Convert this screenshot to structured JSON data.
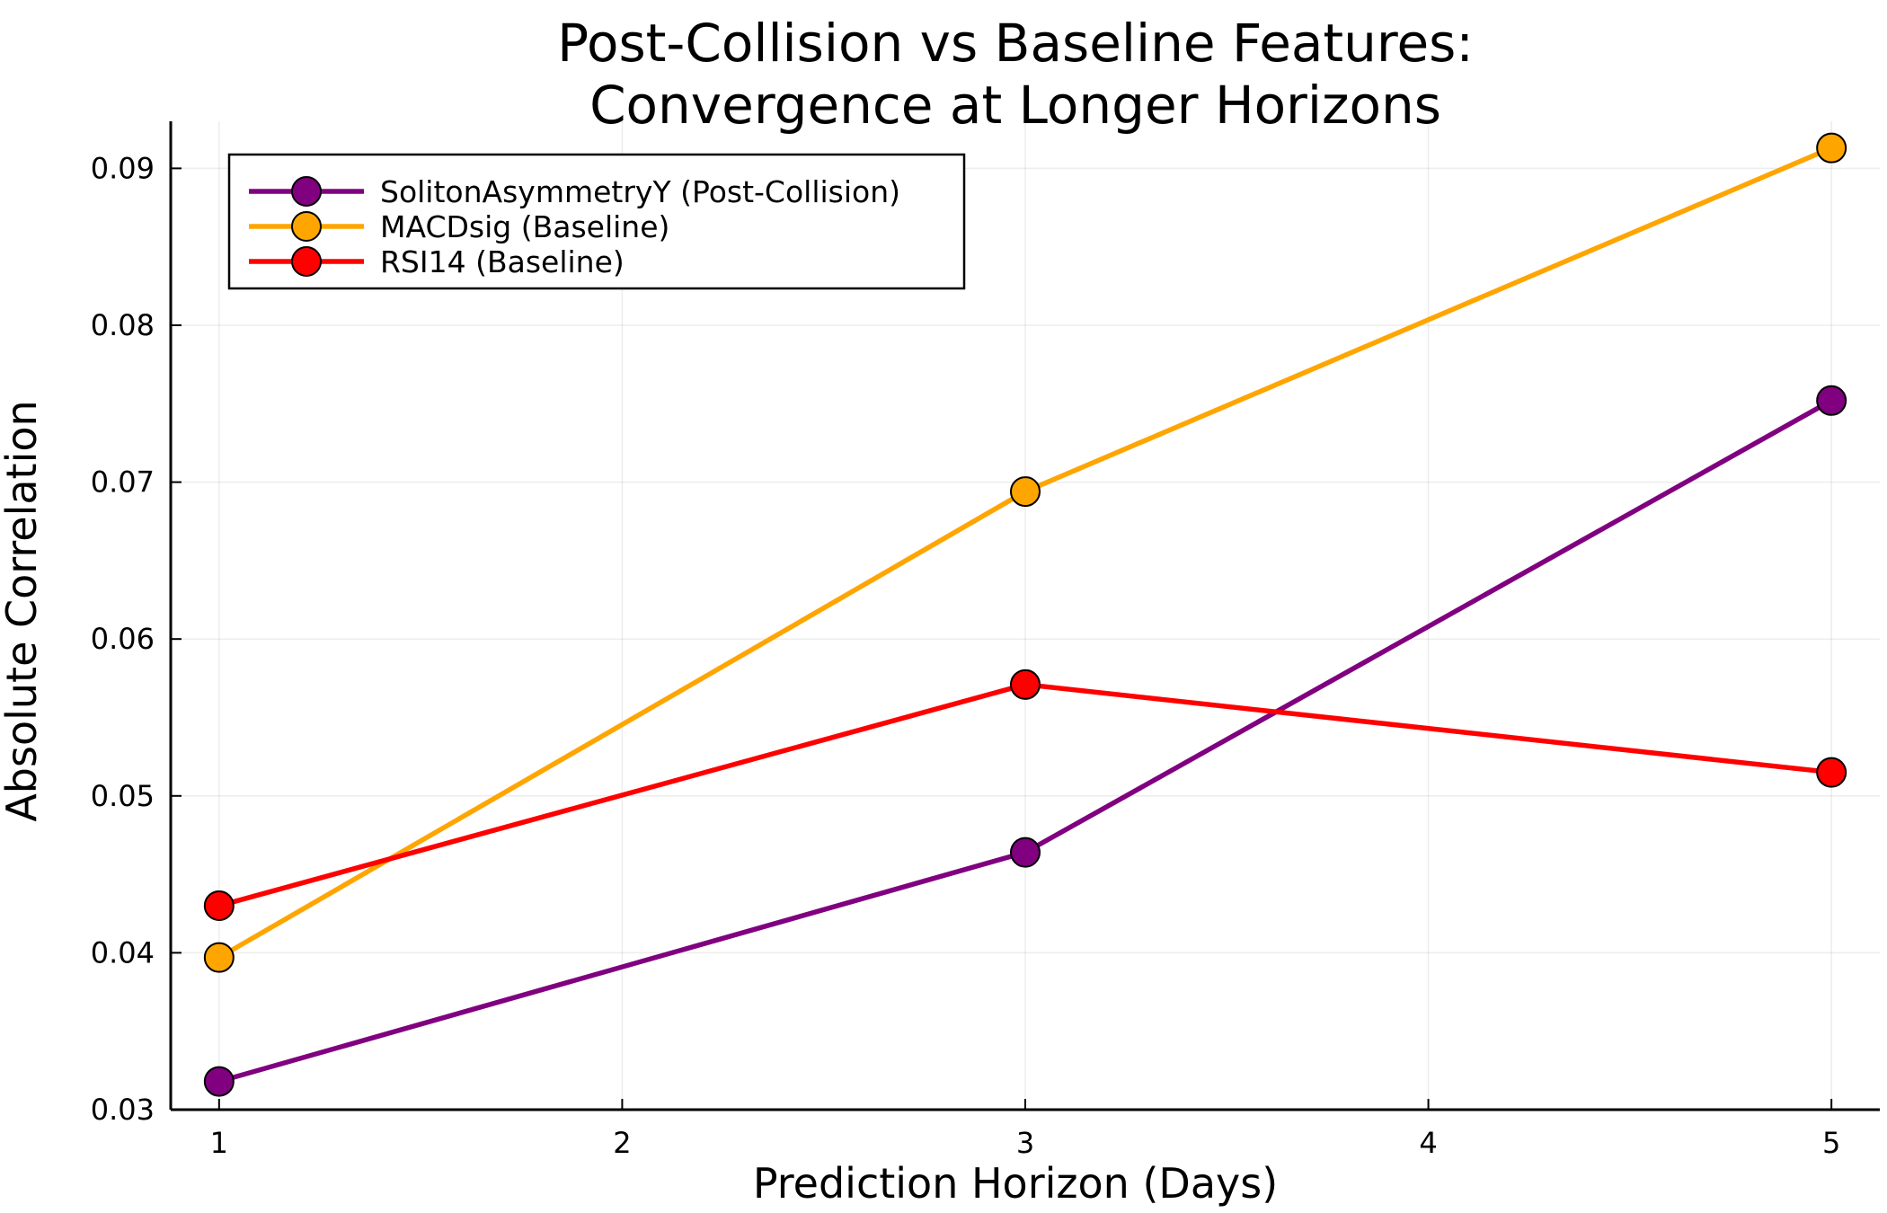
{
  "chart_data": {
    "type": "line",
    "title": [
      "Post-Collision vs Baseline Features:",
      "Convergence at Longer Horizons"
    ],
    "xlabel": "Prediction Horizon (Days)",
    "ylabel": "Absolute Correlation",
    "x": [
      1,
      3,
      5
    ],
    "xlim": [
      0.88,
      5.12
    ],
    "ylim": [
      0.03,
      0.093
    ],
    "xticks": [
      1,
      2,
      3,
      4,
      5
    ],
    "xtick_labels": [
      "1",
      "2",
      "3",
      "4",
      "5"
    ],
    "yticks": [
      0.03,
      0.04,
      0.05,
      0.06,
      0.07,
      0.08,
      0.09
    ],
    "ytick_labels": [
      "0.03",
      "0.04",
      "0.05",
      "0.06",
      "0.07",
      "0.08",
      "0.09"
    ],
    "grid": true,
    "legend_position": "top-left",
    "series": [
      {
        "name": "SolitonAsymmetryY (Post-Collision)",
        "color": "#800080",
        "values": [
          0.0318,
          0.0464,
          0.0752
        ]
      },
      {
        "name": "MACDsig (Baseline)",
        "color": "#FFA500",
        "values": [
          0.0397,
          0.0694,
          0.0913
        ]
      },
      {
        "name": "RSI14 (Baseline)",
        "color": "#FF0000",
        "values": [
          0.043,
          0.0571,
          0.0515
        ]
      }
    ]
  }
}
